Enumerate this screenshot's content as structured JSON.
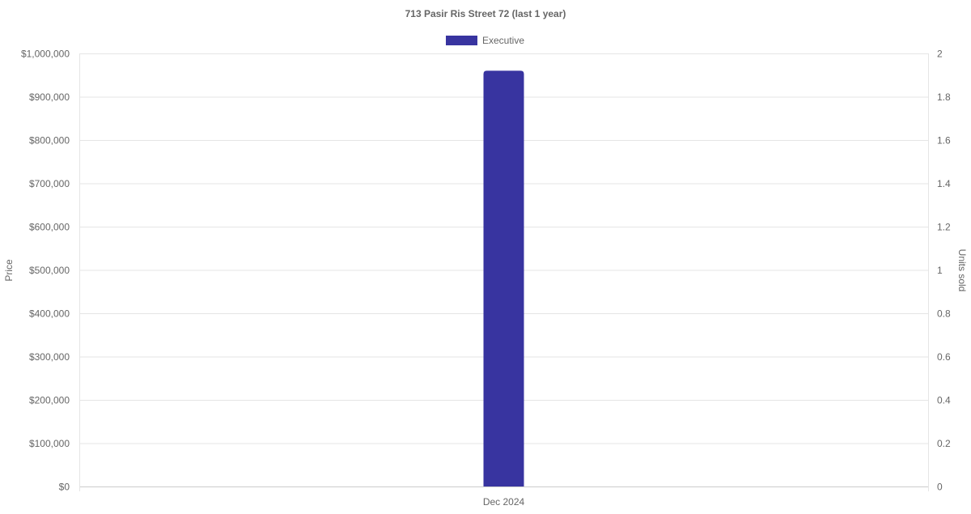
{
  "chart_data": {
    "type": "bar",
    "title": "713 Pasir Ris Street 72 (last 1 year)",
    "categories": [
      "Dec 2024"
    ],
    "series": [
      {
        "name": "Executive",
        "values": [
          960000
        ],
        "color": "#3834a0"
      }
    ],
    "ylabel": "Price",
    "y2label": "Units sold",
    "ylim": [
      0,
      1000000
    ],
    "y2lim": [
      0,
      2
    ],
    "yticks": [
      "$0",
      "$100,000",
      "$200,000",
      "$300,000",
      "$400,000",
      "$500,000",
      "$600,000",
      "$700,000",
      "$800,000",
      "$900,000",
      "$1,000,000"
    ],
    "y2ticks": [
      "0",
      "0.2",
      "0.4",
      "0.6",
      "0.8",
      "1",
      "1.2",
      "1.4",
      "1.6",
      "1.8",
      "2"
    ],
    "grid": true,
    "legend": "top"
  }
}
